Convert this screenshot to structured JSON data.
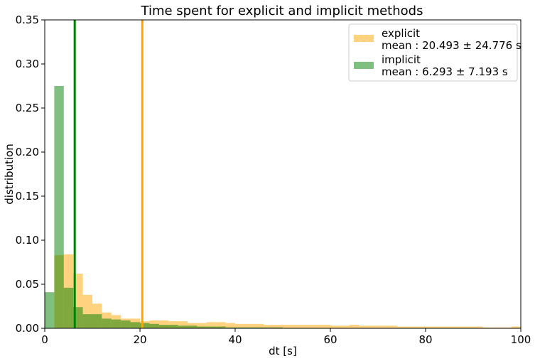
{
  "chart_data": {
    "type": "histogram",
    "title": "Time spent for explicit and implicit methods",
    "xlabel": "dt [s]",
    "ylabel": "distribution",
    "xlim": [
      0,
      100
    ],
    "ylim": [
      0,
      0.35
    ],
    "x_ticks": [
      "0",
      "20",
      "40",
      "60",
      "80",
      "100"
    ],
    "y_ticks": [
      "0.00",
      "0.05",
      "0.10",
      "0.15",
      "0.20",
      "0.25",
      "0.30",
      "0.35"
    ],
    "bin_width": 2,
    "grid": false,
    "legend_position": "top-right",
    "series": [
      {
        "name": "explicit",
        "legend_detail": "mean : 20.493 ± 24.776 s",
        "color": "#ffa500",
        "opacity": 0.5,
        "mean": 20.493,
        "bins": [
          [
            2,
            4,
            0.083
          ],
          [
            4,
            6,
            0.084
          ],
          [
            6,
            8,
            0.062
          ],
          [
            8,
            10,
            0.038
          ],
          [
            10,
            12,
            0.028
          ],
          [
            12,
            14,
            0.018
          ],
          [
            14,
            16,
            0.015
          ],
          [
            16,
            18,
            0.011
          ],
          [
            18,
            20,
            0.011
          ],
          [
            20,
            22,
            0.008
          ],
          [
            22,
            24,
            0.009
          ],
          [
            24,
            26,
            0.009
          ],
          [
            26,
            28,
            0.008
          ],
          [
            28,
            30,
            0.008
          ],
          [
            30,
            32,
            0.006
          ],
          [
            32,
            34,
            0.006
          ],
          [
            34,
            36,
            0.007
          ],
          [
            36,
            38,
            0.007
          ],
          [
            38,
            40,
            0.006
          ],
          [
            40,
            42,
            0.005
          ],
          [
            42,
            44,
            0.005
          ],
          [
            44,
            46,
            0.005
          ],
          [
            46,
            48,
            0.004
          ],
          [
            48,
            50,
            0.004
          ],
          [
            50,
            52,
            0.004
          ],
          [
            52,
            54,
            0.004
          ],
          [
            54,
            56,
            0.004
          ],
          [
            56,
            58,
            0.004
          ],
          [
            58,
            60,
            0.004
          ],
          [
            60,
            62,
            0.003
          ],
          [
            62,
            64,
            0.003
          ],
          [
            64,
            66,
            0.004
          ],
          [
            66,
            68,
            0.003
          ],
          [
            68,
            70,
            0.003
          ],
          [
            70,
            72,
            0.003
          ],
          [
            72,
            74,
            0.003
          ],
          [
            74,
            76,
            0.002
          ],
          [
            76,
            78,
            0.002
          ],
          [
            78,
            80,
            0.002
          ],
          [
            80,
            82,
            0.002
          ],
          [
            82,
            84,
            0.002
          ],
          [
            84,
            86,
            0.002
          ],
          [
            86,
            88,
            0.002
          ],
          [
            88,
            90,
            0.002
          ],
          [
            90,
            92,
            0.002
          ],
          [
            92,
            94,
            0.001
          ],
          [
            94,
            96,
            0.001
          ],
          [
            96,
            98,
            0.001
          ],
          [
            98,
            100,
            0.002
          ]
        ]
      },
      {
        "name": "implicit",
        "legend_detail": "mean : 6.293 ± 7.193 s",
        "color": "#008000",
        "opacity": 0.5,
        "mean": 6.293,
        "bins": [
          [
            0,
            2,
            0.041
          ],
          [
            2,
            4,
            0.275
          ],
          [
            4,
            6,
            0.046
          ],
          [
            6,
            8,
            0.024
          ],
          [
            8,
            10,
            0.016
          ],
          [
            10,
            12,
            0.016
          ],
          [
            12,
            14,
            0.011
          ],
          [
            14,
            16,
            0.01
          ],
          [
            16,
            18,
            0.009
          ],
          [
            18,
            20,
            0.007
          ],
          [
            20,
            22,
            0.006
          ],
          [
            22,
            24,
            0.005
          ],
          [
            24,
            26,
            0.004
          ],
          [
            26,
            28,
            0.004
          ],
          [
            28,
            30,
            0.003
          ],
          [
            30,
            32,
            0.003
          ],
          [
            32,
            34,
            0.002
          ],
          [
            34,
            36,
            0.002
          ],
          [
            36,
            38,
            0.002
          ],
          [
            38,
            40,
            0.001
          ],
          [
            40,
            42,
            0.001
          ],
          [
            42,
            44,
            0.001
          ],
          [
            44,
            46,
            0.001
          ],
          [
            46,
            48,
            0.001
          ],
          [
            48,
            50,
            0.001
          ]
        ]
      }
    ]
  }
}
